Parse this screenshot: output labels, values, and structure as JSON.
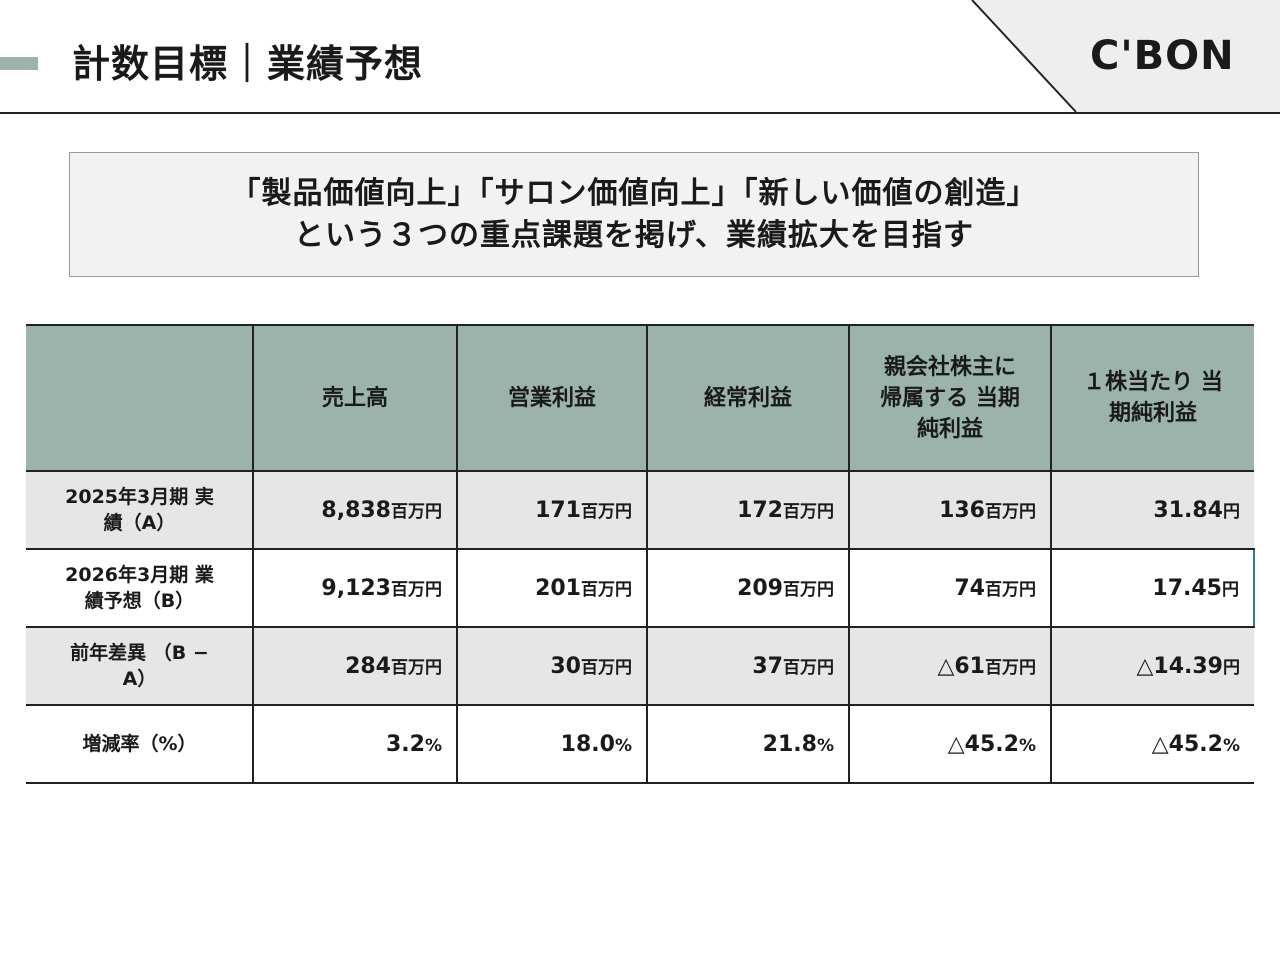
{
  "header": {
    "title": "計数目標｜業績予想",
    "logo": "C'BON"
  },
  "banner": {
    "line1": "「製品価値向上」「サロン価値向上」「新しい価値の創造」",
    "line2": "という３つの重点課題を掲げ、業績拡大を目指す"
  },
  "table": {
    "headers": [
      "",
      "売上高",
      "営業利益",
      "経常利益",
      "親会社株主に 帰属する 当期純利益",
      "１株当たり 当期純利益"
    ],
    "rows": [
      {
        "label": "2025年3月期 実績（A）",
        "style": "gray",
        "cells": [
          {
            "value": "8,838",
            "unit": "百万円"
          },
          {
            "value": "171",
            "unit": "百万円"
          },
          {
            "value": "172",
            "unit": "百万円"
          },
          {
            "value": "136",
            "unit": "百万円"
          },
          {
            "value": "31.84",
            "unit": "円"
          }
        ]
      },
      {
        "label": "2026年3月期 業績予想（B）",
        "style": "white highlight",
        "cells": [
          {
            "value": "9,123",
            "unit": "百万円"
          },
          {
            "value": "201",
            "unit": "百万円"
          },
          {
            "value": "209",
            "unit": "百万円"
          },
          {
            "value": "74",
            "unit": "百万円"
          },
          {
            "value": "17.45",
            "unit": "円"
          }
        ]
      },
      {
        "label": "前年差異 （B − A）",
        "style": "gray",
        "cells": [
          {
            "value": "284",
            "unit": "百万円"
          },
          {
            "value": "30",
            "unit": "百万円"
          },
          {
            "value": "37",
            "unit": "百万円"
          },
          {
            "value": "△61",
            "unit": "百万円"
          },
          {
            "value": "△14.39",
            "unit": "円"
          }
        ]
      },
      {
        "label": "増減率（%）",
        "style": "white",
        "cells": [
          {
            "value": "3.2",
            "unit": "%"
          },
          {
            "value": "18.0",
            "unit": "%"
          },
          {
            "value": "21.8",
            "unit": "%"
          },
          {
            "value": "△45.2",
            "unit": "%"
          },
          {
            "value": "△45.2",
            "unit": "%"
          }
        ]
      }
    ]
  },
  "colors": {
    "accent": "#9bb3ab",
    "highlight_border": "#2e7ab8",
    "row_gray": "#e6e6e6"
  }
}
